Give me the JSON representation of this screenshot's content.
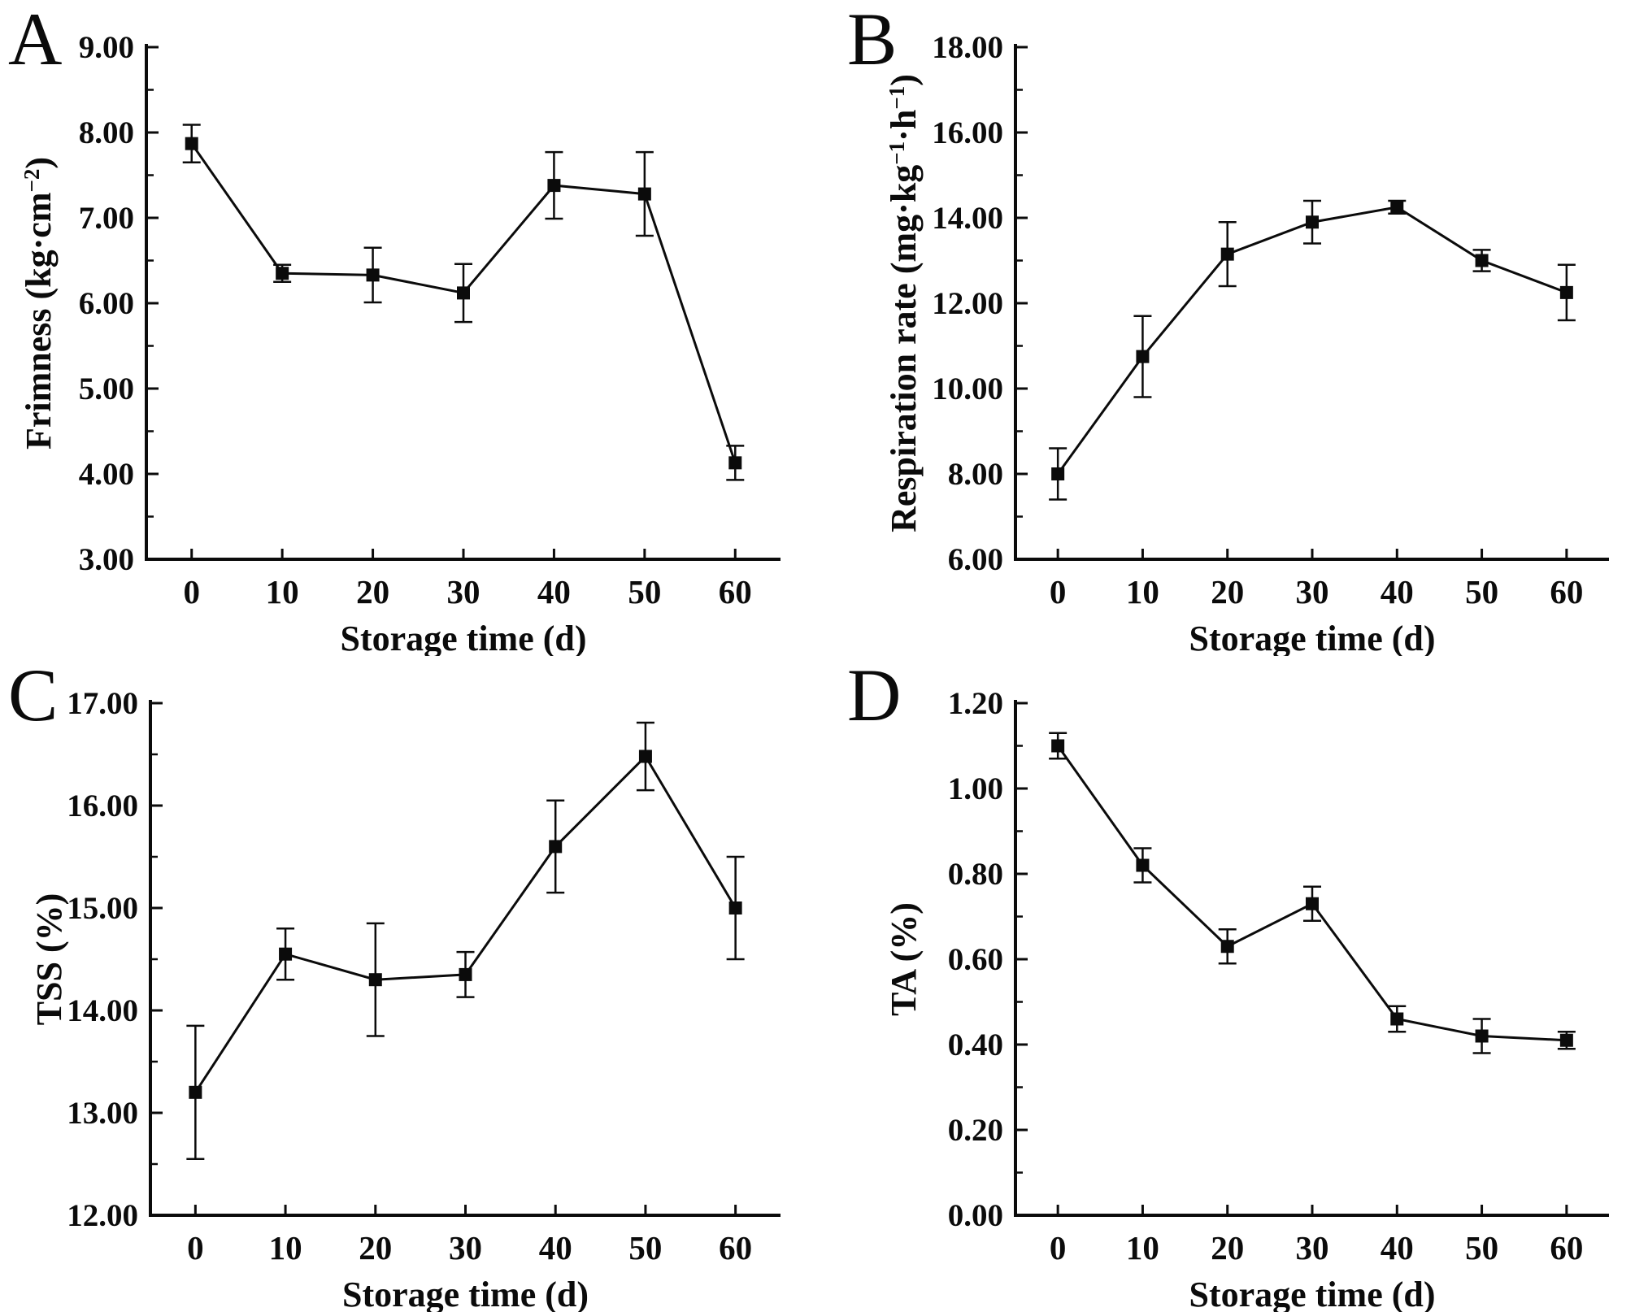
{
  "figure": {
    "background_color": "#ffffff",
    "ink_color": "#0b0b0b",
    "xlabel": "Storage time (d)",
    "x_tick_labels": [
      "0",
      "10",
      "20",
      "30",
      "40",
      "50",
      "60"
    ]
  },
  "chart_data": [
    {
      "type": "line",
      "panel_label": "A",
      "ylabel": "Frimness (kg·cm⁻²)",
      "ylabel_segments": [
        {
          "t": "Frimness (kg·cm"
        },
        {
          "t": "−2",
          "sup": true
        },
        {
          "t": ")"
        }
      ],
      "xlabel": "Storage time (d)",
      "x": [
        0,
        10,
        20,
        30,
        40,
        50,
        60
      ],
      "values": [
        7.87,
        6.35,
        6.33,
        6.12,
        7.38,
        7.28,
        4.13
      ],
      "errors": [
        0.22,
        0.1,
        0.32,
        0.34,
        0.39,
        0.49,
        0.2
      ],
      "ylim": [
        3.0,
        9.0
      ],
      "ytick_step": 1.0,
      "ytick_decimals": 2,
      "grid": false,
      "legend": null,
      "marker": "square",
      "color": "#0b0b0b"
    },
    {
      "type": "line",
      "panel_label": "B",
      "ylabel": "Respiration rate (mg·kg⁻¹·h⁻¹)",
      "ylabel_segments": [
        {
          "t": "Respiration rate (mg·kg"
        },
        {
          "t": "−1",
          "sup": true
        },
        {
          "t": "·h"
        },
        {
          "t": "−1",
          "sup": true
        },
        {
          "t": ")"
        }
      ],
      "xlabel": "Storage time (d)",
      "x": [
        0,
        10,
        20,
        30,
        40,
        50,
        60
      ],
      "values": [
        8.0,
        10.75,
        13.15,
        13.9,
        14.25,
        13.0,
        12.25
      ],
      "errors": [
        0.6,
        0.95,
        0.75,
        0.5,
        0.15,
        0.25,
        0.65
      ],
      "ylim": [
        6.0,
        18.0
      ],
      "ytick_step": 2.0,
      "ytick_decimals": 2,
      "grid": false,
      "legend": null,
      "marker": "square",
      "color": "#0b0b0b"
    },
    {
      "type": "line",
      "panel_label": "C",
      "ylabel": "TSS (%)",
      "ylabel_segments": [
        {
          "t": "TSS (%)"
        }
      ],
      "xlabel": "Storage time (d)",
      "x": [
        0,
        10,
        20,
        30,
        40,
        50,
        60
      ],
      "values": [
        13.2,
        14.55,
        14.3,
        14.35,
        15.6,
        16.48,
        15.0
      ],
      "errors": [
        0.65,
        0.25,
        0.55,
        0.22,
        0.45,
        0.33,
        0.5
      ],
      "ylim": [
        12.0,
        17.0
      ],
      "ytick_step": 1.0,
      "ytick_decimals": 2,
      "grid": false,
      "legend": null,
      "marker": "square",
      "color": "#0b0b0b"
    },
    {
      "type": "line",
      "panel_label": "D",
      "ylabel": "TA (%)",
      "ylabel_segments": [
        {
          "t": "TA (%)"
        }
      ],
      "xlabel": "Storage time (d)",
      "x": [
        0,
        10,
        20,
        30,
        40,
        50,
        60
      ],
      "values": [
        1.1,
        0.82,
        0.63,
        0.73,
        0.46,
        0.42,
        0.41
      ],
      "errors": [
        0.03,
        0.04,
        0.04,
        0.04,
        0.03,
        0.04,
        0.02
      ],
      "ylim": [
        0.0,
        1.2
      ],
      "ytick_step": 0.2,
      "ytick_decimals": 2,
      "grid": false,
      "legend": null,
      "marker": "square",
      "color": "#0b0b0b"
    }
  ]
}
